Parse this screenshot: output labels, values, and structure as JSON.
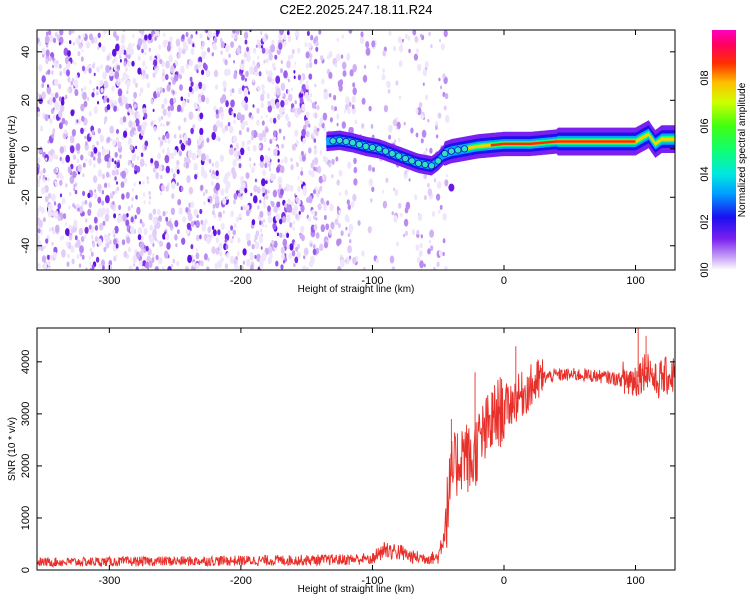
{
  "title": "C2E2.2025.247.18.11.R24",
  "chart_data": [
    {
      "type": "heatmap",
      "xlabel": "Height of straight line (km)",
      "ylabel": "Frequency (Hz)",
      "xlim": [
        -355,
        130
      ],
      "ylim": [
        -50,
        49
      ],
      "xticks": [
        -300,
        -200,
        -100,
        0,
        100
      ],
      "yticks": [
        -40,
        -20,
        0,
        20,
        40
      ],
      "colorbar": {
        "label": "Normalized spectral amplitude",
        "range": [
          0,
          1
        ],
        "ticks": [
          0.0,
          0.2,
          0.4,
          0.6,
          0.8
        ],
        "tick_labels": [
          "0.0",
          "0.2",
          "0.4",
          "0.6",
          "0.8"
        ]
      },
      "noise_region_x": [
        -355,
        -58
      ],
      "signal_track": {
        "x": [
          -135,
          -125,
          -115,
          -105,
          -95,
          -85,
          -75,
          -65,
          -55,
          -50,
          -45,
          -40,
          -30,
          -20,
          -10,
          0,
          10,
          20,
          40,
          60,
          80,
          100,
          110,
          115,
          120,
          130
        ],
        "freq": [
          3,
          3.5,
          2.5,
          1,
          0,
          -2,
          -4,
          -6,
          -7,
          -5,
          -2,
          -1,
          0,
          1,
          1.5,
          2,
          2,
          2,
          3,
          3,
          3,
          3,
          6,
          2,
          4,
          4
        ]
      }
    },
    {
      "type": "line",
      "xlabel": "Height of straight line (km)",
      "ylabel": "SNR (10 * v/v)",
      "xlim": [
        -355,
        130
      ],
      "ylim": [
        0,
        4650
      ],
      "xticks": [
        -300,
        -200,
        -100,
        0,
        100
      ],
      "yticks": [
        0,
        1000,
        2000,
        3000,
        4000
      ],
      "color": "#e8302a",
      "series": [
        {
          "x": [
            -355,
            -300,
            -250,
            -200,
            -150,
            -120,
            -100,
            -90,
            -80,
            -70,
            -60,
            -50,
            -45,
            -40,
            -35,
            -30,
            -25,
            -20,
            -15,
            -10,
            -5,
            0,
            10,
            20,
            30,
            40,
            60,
            80,
            90,
            100,
            105,
            110,
            115,
            120,
            130
          ],
          "y": [
            150,
            160,
            170,
            180,
            190,
            200,
            220,
            400,
            350,
            250,
            230,
            240,
            800,
            1800,
            2100,
            2300,
            2000,
            2400,
            2600,
            2800,
            3000,
            3100,
            3300,
            3500,
            3700,
            3750,
            3750,
            3700,
            3650,
            3650,
            3800,
            3900,
            3600,
            3700,
            3750
          ]
        }
      ]
    }
  ]
}
